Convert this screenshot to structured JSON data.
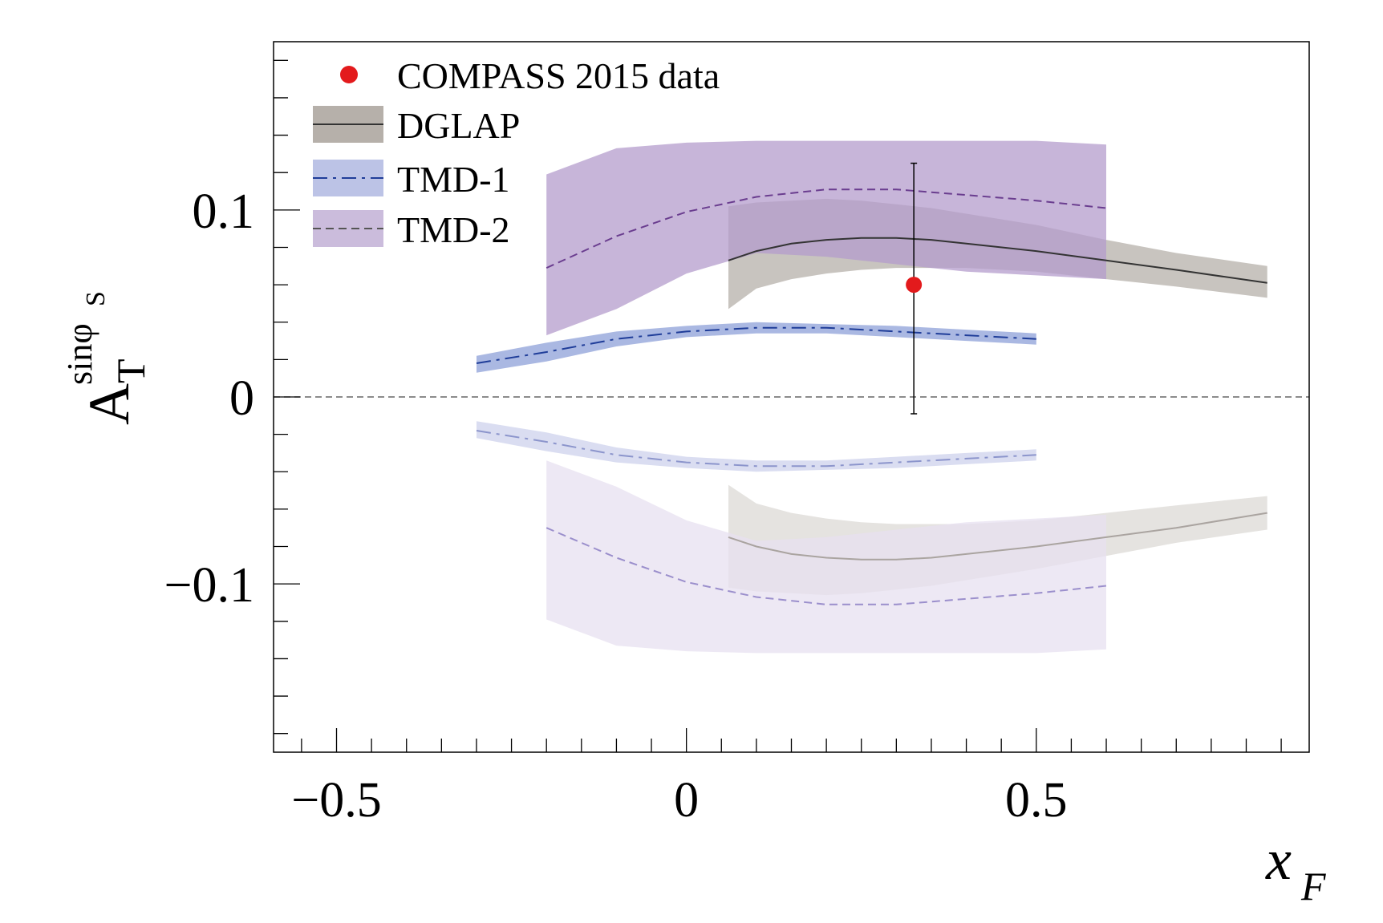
{
  "chart_data": {
    "type": "line",
    "xlabel": "x",
    "xlabel_sub": "F",
    "ylabel": "A",
    "ylabel_sub": "T",
    "ylabel_sup": "sinφ",
    "ylabel_sup_sub": "S",
    "xlim": [
      -0.59,
      0.89
    ],
    "ylim": [
      -0.19,
      0.19
    ],
    "x_ticks": [
      {
        "value": -0.5,
        "label": "−0.5"
      },
      {
        "value": 0,
        "label": "0"
      },
      {
        "value": 0.5,
        "label": "0.5"
      }
    ],
    "y_ticks": [
      {
        "value": -0.1,
        "label": "−0.1"
      },
      {
        "value": 0,
        "label": "0"
      },
      {
        "value": 0.1,
        "label": "0.1"
      }
    ],
    "grid": false,
    "legend_position": "top-left",
    "legend": [
      {
        "label": "COMPASS 2015 data",
        "kind": "point"
      },
      {
        "label": "DGLAP",
        "kind": "band-solid"
      },
      {
        "label": "TMD-1",
        "kind": "band-dashdot"
      },
      {
        "label": "TMD-2",
        "kind": "band-dash"
      }
    ],
    "data_point": {
      "name": "COMPASS 2015 data",
      "x": 0.325,
      "y": 0.06,
      "yerr_low": 0.069,
      "yerr_high": 0.065,
      "color": "#e31a1c"
    },
    "series": [
      {
        "name": "DGLAP",
        "line_color": "#333333",
        "band_color": "#b6b0aa",
        "style": "solid",
        "x": [
          0.06,
          0.1,
          0.15,
          0.2,
          0.25,
          0.3,
          0.35,
          0.4,
          0.5,
          0.6,
          0.7,
          0.83
        ],
        "y": [
          0.073,
          0.078,
          0.082,
          0.084,
          0.085,
          0.085,
          0.084,
          0.082,
          0.078,
          0.073,
          0.068,
          0.061
        ],
        "upper": [
          0.102,
          0.104,
          0.105,
          0.106,
          0.105,
          0.103,
          0.101,
          0.098,
          0.092,
          0.084,
          0.077,
          0.07
        ],
        "lower": [
          0.047,
          0.058,
          0.063,
          0.066,
          0.068,
          0.069,
          0.069,
          0.069,
          0.067,
          0.063,
          0.059,
          0.053
        ]
      },
      {
        "name": "TMD-1",
        "line_color": "#1f3d99",
        "band_color": "#8ea0d8",
        "style": "dashdot",
        "x": [
          -0.3,
          -0.2,
          -0.1,
          0.0,
          0.1,
          0.2,
          0.3,
          0.4,
          0.5
        ],
        "y": [
          0.018,
          0.024,
          0.031,
          0.035,
          0.037,
          0.037,
          0.035,
          0.033,
          0.031
        ],
        "upper": [
          0.022,
          0.029,
          0.035,
          0.038,
          0.04,
          0.039,
          0.038,
          0.036,
          0.034
        ],
        "lower": [
          0.013,
          0.019,
          0.027,
          0.032,
          0.034,
          0.034,
          0.032,
          0.03,
          0.028
        ]
      },
      {
        "name": "TMD-2",
        "line_color": "#6a3d8f",
        "band_color": "#b49ccc",
        "style": "dash",
        "x": [
          -0.2,
          -0.1,
          0.0,
          0.1,
          0.2,
          0.3,
          0.4,
          0.5,
          0.6
        ],
        "y": [
          0.069,
          0.086,
          0.099,
          0.107,
          0.111,
          0.111,
          0.108,
          0.105,
          0.101
        ],
        "upper": [
          0.119,
          0.133,
          0.136,
          0.137,
          0.137,
          0.137,
          0.137,
          0.137,
          0.135
        ],
        "lower": [
          0.033,
          0.047,
          0.066,
          0.077,
          0.075,
          0.071,
          0.067,
          0.065,
          0.063
        ]
      }
    ],
    "mirror_series_note_values": "mirror",
    "mirror": [
      {
        "name": "DGLAP",
        "line_color": "#aaa4a0",
        "band_color": "#dcd9d6",
        "style": "solid",
        "x": [
          0.06,
          0.1,
          0.15,
          0.2,
          0.25,
          0.3,
          0.35,
          0.4,
          0.5,
          0.6,
          0.7,
          0.83
        ],
        "y": [
          -0.075,
          -0.08,
          -0.084,
          -0.086,
          -0.087,
          -0.087,
          -0.086,
          -0.084,
          -0.08,
          -0.075,
          -0.07,
          -0.062
        ],
        "upper": [
          -0.047,
          -0.057,
          -0.062,
          -0.065,
          -0.067,
          -0.068,
          -0.068,
          -0.068,
          -0.066,
          -0.062,
          -0.058,
          -0.053
        ],
        "lower": [
          -0.102,
          -0.104,
          -0.105,
          -0.106,
          -0.105,
          -0.103,
          -0.101,
          -0.098,
          -0.092,
          -0.085,
          -0.078,
          -0.071
        ]
      },
      {
        "name": "TMD-1",
        "line_color": "#8c95cc",
        "band_color": "#cdd2ec",
        "style": "dashdot",
        "x": [
          -0.3,
          -0.2,
          -0.1,
          0.0,
          0.1,
          0.2,
          0.3,
          0.4,
          0.5
        ],
        "y": [
          -0.018,
          -0.024,
          -0.031,
          -0.035,
          -0.037,
          -0.037,
          -0.035,
          -0.033,
          -0.031
        ],
        "upper": [
          -0.013,
          -0.019,
          -0.027,
          -0.032,
          -0.034,
          -0.034,
          -0.032,
          -0.03,
          -0.028
        ],
        "lower": [
          -0.022,
          -0.029,
          -0.035,
          -0.038,
          -0.04,
          -0.039,
          -0.038,
          -0.036,
          -0.034
        ]
      },
      {
        "name": "TMD-2",
        "line_color": "#9b8fcc",
        "band_color": "#e7e0f0",
        "style": "dash",
        "x": [
          -0.2,
          -0.1,
          0.0,
          0.1,
          0.2,
          0.3,
          0.4,
          0.5,
          0.6
        ],
        "y": [
          -0.07,
          -0.086,
          -0.099,
          -0.107,
          -0.111,
          -0.111,
          -0.108,
          -0.105,
          -0.101
        ],
        "upper": [
          -0.034,
          -0.048,
          -0.066,
          -0.077,
          -0.075,
          -0.071,
          -0.067,
          -0.065,
          -0.063
        ],
        "lower": [
          -0.119,
          -0.133,
          -0.136,
          -0.137,
          -0.137,
          -0.137,
          -0.137,
          -0.137,
          -0.135
        ]
      }
    ]
  }
}
